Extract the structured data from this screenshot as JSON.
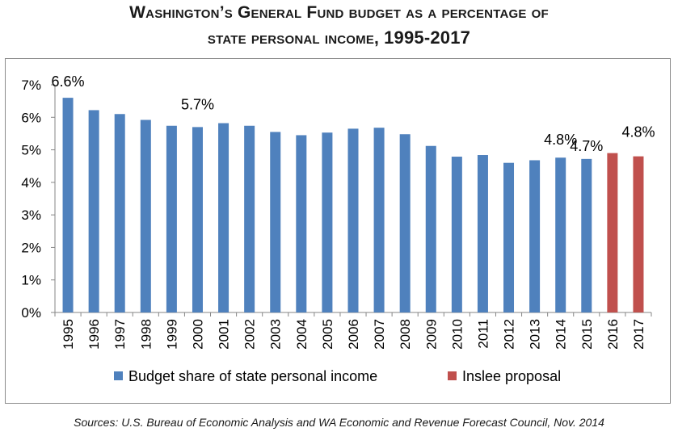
{
  "title_line1": "Washington’s General Fund budget as a percentage of",
  "title_line2": "state personal income,",
  "title_years": "1995-2017",
  "source": "Sources: U.S. Bureau of Economic Analysis and WA Economic and Revenue Forecast Council, Nov. 2014",
  "colors": {
    "budget": "#4f81bd",
    "proposal": "#c0504d"
  },
  "chart_data": {
    "type": "bar",
    "categories": [
      "1995",
      "1996",
      "1997",
      "1998",
      "1999",
      "2000",
      "2001",
      "2002",
      "2003",
      "2004",
      "2005",
      "2006",
      "2007",
      "2008",
      "2009",
      "2010",
      "2011",
      "2012",
      "2013",
      "2014",
      "2015",
      "2016",
      "2017"
    ],
    "series": [
      {
        "name": "Budget share of state personal income",
        "color": "#4f81bd",
        "values": [
          6.6,
          6.22,
          6.1,
          5.92,
          5.74,
          5.7,
          5.82,
          5.74,
          5.55,
          5.45,
          5.53,
          5.65,
          5.68,
          5.48,
          5.12,
          4.79,
          4.84,
          4.6,
          4.68,
          4.76,
          4.72,
          null,
          null
        ]
      },
      {
        "name": "Inslee proposal",
        "color": "#c0504d",
        "values": [
          null,
          null,
          null,
          null,
          null,
          null,
          null,
          null,
          null,
          null,
          null,
          null,
          null,
          null,
          null,
          null,
          null,
          null,
          null,
          null,
          null,
          4.9,
          4.8
        ]
      }
    ],
    "ylim": [
      0,
      7
    ],
    "yticks": [
      "0%",
      "1%",
      "2%",
      "3%",
      "4%",
      "5%",
      "6%",
      "7%"
    ],
    "annotations": [
      {
        "category": "1995",
        "text": "6.6%"
      },
      {
        "category": "2000",
        "text": "5.7%"
      },
      {
        "category": "2014",
        "text": "4.8%"
      },
      {
        "category": "2015",
        "text": "4.7%"
      },
      {
        "category": "2017",
        "text": "4.8%"
      }
    ],
    "legend_position": "bottom",
    "grid": false
  }
}
